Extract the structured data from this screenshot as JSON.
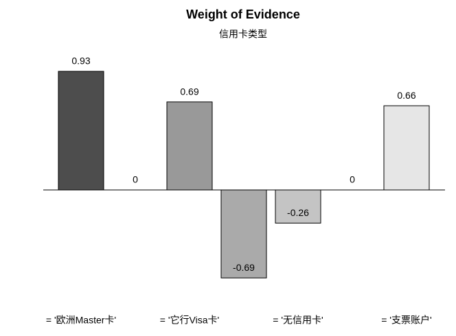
{
  "chart_data": {
    "type": "bar",
    "title": "Weight of Evidence",
    "subtitle": "信用卡类型",
    "categories": [
      "= '欧洲Master卡'",
      null,
      "= '它行Visa卡'",
      null,
      "= '无信用卡'",
      null,
      "= '支票账户'"
    ],
    "values": [
      0.93,
      0,
      0.69,
      -0.69,
      -0.26,
      0,
      0.66
    ],
    "colors": [
      "#4d4d4d",
      "#737373",
      "#999999",
      "#aaaaaa",
      "#c4c4c4",
      "#d6d6d6",
      "#e6e6e6"
    ]
  }
}
